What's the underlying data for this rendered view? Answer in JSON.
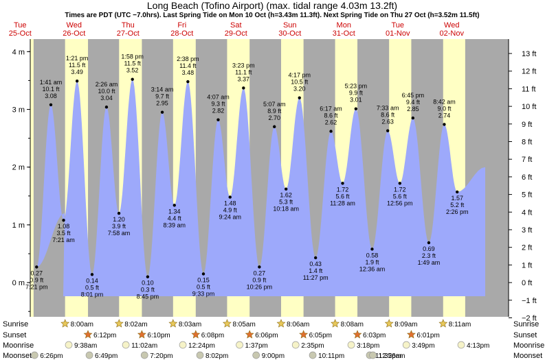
{
  "chart_data": {
    "type": "area",
    "title": "Long Beach (Tofino Airport) (max. tidal range 4.03m 13.2ft)",
    "subtitle": "Times are PDT (UTC −7.0hrs). Last Spring Tide on Mon 10 Oct (h=3.43m 11.3ft). Next Spring Tide on Thu 27 Oct (h=3.52m 11.5ft)",
    "days": [
      {
        "weekday": "Tue",
        "date": "25-Oct"
      },
      {
        "weekday": "Wed",
        "date": "26-Oct"
      },
      {
        "weekday": "Thu",
        "date": "27-Oct"
      },
      {
        "weekday": "Fri",
        "date": "28-Oct"
      },
      {
        "weekday": "Sat",
        "date": "29-Oct"
      },
      {
        "weekday": "Sun",
        "date": "30-Oct"
      },
      {
        "weekday": "Mon",
        "date": "31-Oct"
      },
      {
        "weekday": "Tue",
        "date": "01-Nov"
      },
      {
        "weekday": "Wed",
        "date": "02-Nov"
      }
    ],
    "y_left_ticks": [
      "0 m",
      "1 m",
      "2 m",
      "3 m",
      "4 m"
    ],
    "y_right_ticks": [
      "−2 ft",
      "−1 ft",
      "0 ft",
      "1 ft",
      "2 ft",
      "3 ft",
      "4 ft",
      "5 ft",
      "6 ft",
      "7 ft",
      "8 ft",
      "9 ft",
      "10 ft",
      "11 ft",
      "12 ft",
      "13 ft"
    ],
    "ylim_m": [
      -0.6,
      4.2
    ],
    "tides": [
      {
        "time": "7:21 pm",
        "day": 0,
        "height_m": "0.27 m",
        "height_ft": "0.9 ft",
        "type": "low"
      },
      {
        "time": "1:41 am",
        "day": 1,
        "height_m": "3.08 m",
        "height_ft": "10.1 ft",
        "type": "high"
      },
      {
        "time": "7:21 am",
        "day": 1,
        "height_m": "1.08 m",
        "height_ft": "3.5 ft",
        "type": "low"
      },
      {
        "time": "1:21 pm",
        "day": 1,
        "height_m": "3.49 m",
        "height_ft": "11.5 ft",
        "type": "high"
      },
      {
        "time": "8:01 pm",
        "day": 1,
        "height_m": "0.14 m",
        "height_ft": "0.5 ft",
        "type": "low"
      },
      {
        "time": "2:26 am",
        "day": 2,
        "height_m": "3.04 m",
        "height_ft": "10.0 ft",
        "type": "high"
      },
      {
        "time": "7:58 am",
        "day": 2,
        "height_m": "1.20 m",
        "height_ft": "3.9 ft",
        "type": "low"
      },
      {
        "time": "1:58 pm",
        "day": 2,
        "height_m": "3.52 m",
        "height_ft": "11.5 ft",
        "type": "high"
      },
      {
        "time": "8:45 pm",
        "day": 2,
        "height_m": "0.10 m",
        "height_ft": "0.3 ft",
        "type": "low"
      },
      {
        "time": "3:14 am",
        "day": 3,
        "height_m": "2.95 m",
        "height_ft": "9.7 ft",
        "type": "high"
      },
      {
        "time": "8:39 am",
        "day": 3,
        "height_m": "1.34 m",
        "height_ft": "4.4 ft",
        "type": "low"
      },
      {
        "time": "2:38 pm",
        "day": 3,
        "height_m": "3.48 m",
        "height_ft": "11.4 ft",
        "type": "high"
      },
      {
        "time": "9:33 pm",
        "day": 3,
        "height_m": "0.15 m",
        "height_ft": "0.5 ft",
        "type": "low"
      },
      {
        "time": "4:07 am",
        "day": 4,
        "height_m": "2.82 m",
        "height_ft": "9.3 ft",
        "type": "high"
      },
      {
        "time": "9:24 am",
        "day": 4,
        "height_m": "1.48 m",
        "height_ft": "4.9 ft",
        "type": "low"
      },
      {
        "time": "3:23 pm",
        "day": 4,
        "height_m": "3.37 m",
        "height_ft": "11.1 ft",
        "type": "high"
      },
      {
        "time": "10:26 pm",
        "day": 4,
        "height_m": "0.27 m",
        "height_ft": "0.9 ft",
        "type": "low"
      },
      {
        "time": "5:07 am",
        "day": 5,
        "height_m": "2.70 m",
        "height_ft": "8.9 ft",
        "type": "high"
      },
      {
        "time": "10:18 am",
        "day": 5,
        "height_m": "1.62 m",
        "height_ft": "5.3 ft",
        "type": "low"
      },
      {
        "time": "4:17 pm",
        "day": 5,
        "height_m": "3.20 m",
        "height_ft": "10.5 ft",
        "type": "high"
      },
      {
        "time": "11:27 pm",
        "day": 5,
        "height_m": "0.43 m",
        "height_ft": "1.4 ft",
        "type": "low"
      },
      {
        "time": "6:17 am",
        "day": 6,
        "height_m": "2.62 m",
        "height_ft": "8.6 ft",
        "type": "high"
      },
      {
        "time": "11:28 am",
        "day": 6,
        "height_m": "1.72 m",
        "height_ft": "5.6 ft",
        "type": "low"
      },
      {
        "time": "5:23 pm",
        "day": 6,
        "height_m": "3.01 m",
        "height_ft": "9.9 ft",
        "type": "high"
      },
      {
        "time": "12:36 am",
        "day": 7,
        "height_m": "0.58 m",
        "height_ft": "1.9 ft",
        "type": "low"
      },
      {
        "time": "7:33 am",
        "day": 7,
        "height_m": "2.63 m",
        "height_ft": "8.6 ft",
        "type": "high"
      },
      {
        "time": "12:56 pm",
        "day": 7,
        "height_m": "1.72 m",
        "height_ft": "5.6 ft",
        "type": "low"
      },
      {
        "time": "6:45 pm",
        "day": 7,
        "height_m": "2.85 m",
        "height_ft": "9.4 ft",
        "type": "high"
      },
      {
        "time": "1:49 am",
        "day": 8,
        "height_m": "0.69 m",
        "height_ft": "2.3 ft",
        "type": "low"
      },
      {
        "time": "8:42 am",
        "day": 8,
        "height_m": "2.74 m",
        "height_ft": "9.0 ft",
        "type": "high"
      },
      {
        "time": "2:26 pm",
        "day": 8,
        "height_m": "1.57 m",
        "height_ft": "5.2 ft",
        "type": "low"
      }
    ],
    "astro_rows": {
      "sunrise": {
        "label": "Sunrise",
        "times": [
          "",
          "8:00am",
          "8:02am",
          "8:03am",
          "8:05am",
          "8:06am",
          "8:08am",
          "8:09am",
          "8:11am"
        ]
      },
      "sunset": {
        "label": "Sunset",
        "times": [
          "",
          "6:12pm",
          "6:10pm",
          "6:08pm",
          "6:06pm",
          "6:05pm",
          "6:03pm",
          "6:01pm",
          ""
        ]
      },
      "moonrise": {
        "label": "Moonrise",
        "times": [
          "",
          "9:38am",
          "11:02am",
          "12:24pm",
          "1:37pm",
          "2:35pm",
          "3:18pm",
          "3:49pm",
          "4:13pm"
        ]
      },
      "moonset": {
        "label": "Moonset",
        "times": [
          "6:26pm",
          "6:49pm",
          "7:20pm",
          "8:02pm",
          "9:00pm",
          "10:11pm",
          "11:32pm",
          "12:56am",
          ""
        ]
      }
    },
    "colors": {
      "night": "#a9a9a9",
      "day": "#ffffc4",
      "water": "#9da9fb",
      "day_header": "#cc0000",
      "sun_icon": "#e8c85a",
      "sunset_icon": "#e07030",
      "moon_icon": "#f6f3c8",
      "moonset_icon": "#c8c8b0"
    }
  }
}
